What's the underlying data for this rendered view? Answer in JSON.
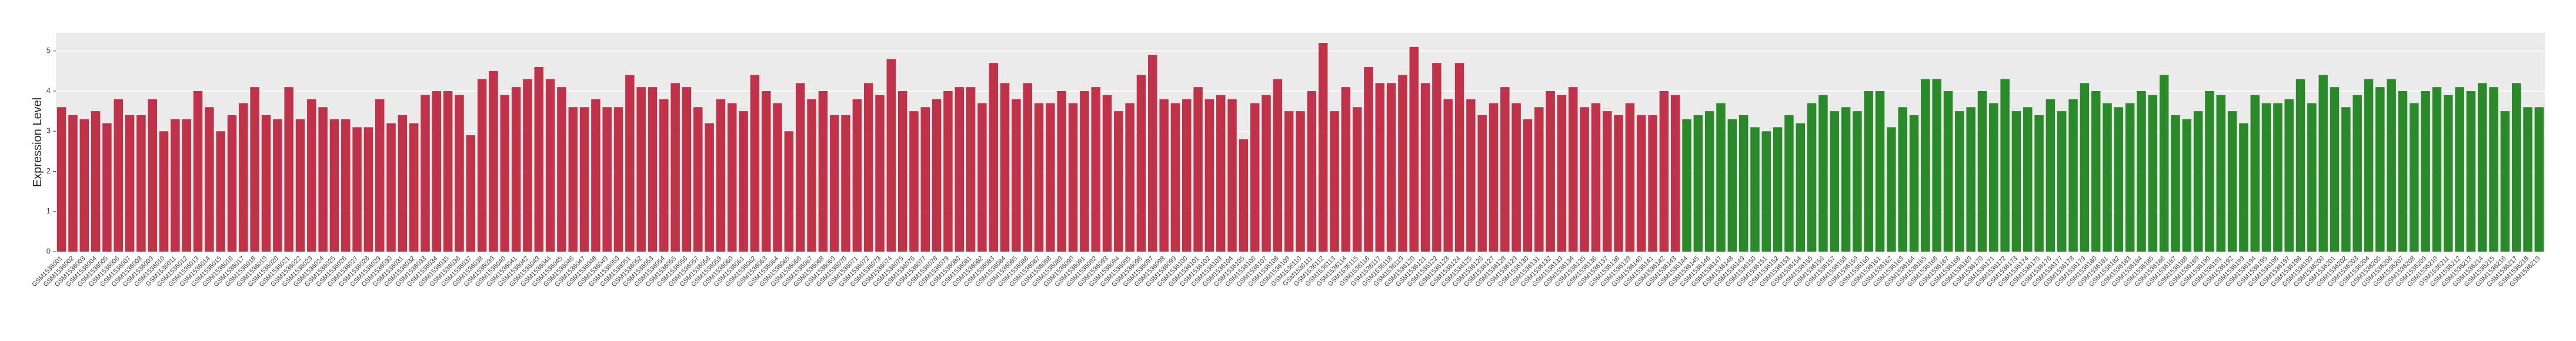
{
  "chart_data": {
    "type": "bar",
    "y_label": "Expression Level",
    "ylim": [
      0,
      5.45
    ],
    "yticks": [
      0,
      1,
      2,
      3,
      4,
      5
    ],
    "grid": true,
    "categories": [
      "GSM1536001",
      "GSM1536002",
      "GSM1536003",
      "GSM1536004",
      "GSM1536005",
      "GSM1536006",
      "GSM1536007",
      "GSM1536008",
      "GSM1536009",
      "GSM1536010",
      "GSM1536011",
      "GSM1536012",
      "GSM1536013",
      "GSM1536014",
      "GSM1536015",
      "GSM1536016",
      "GSM1536017",
      "GSM1536018",
      "GSM1536019",
      "GSM1536020",
      "GSM1536021",
      "GSM1536022",
      "GSM1536023",
      "GSM1536024",
      "GSM1536025",
      "GSM1536026",
      "GSM1536027",
      "GSM1536028",
      "GSM1536029",
      "GSM1536030",
      "GSM1536031",
      "GSM1536032",
      "GSM1536033",
      "GSM1536034",
      "GSM1536035",
      "GSM1536036",
      "GSM1536037",
      "GSM1536038",
      "GSM1536039",
      "GSM1536040",
      "GSM1536041",
      "GSM1536042",
      "GSM1536043",
      "GSM1536044",
      "GSM1536045",
      "GSM1536046",
      "GSM1536047",
      "GSM1536048",
      "GSM1536049",
      "GSM1536050",
      "GSM1536051",
      "GSM1536052",
      "GSM1536053",
      "GSM1536054",
      "GSM1536055",
      "GSM1536056",
      "GSM1536057",
      "GSM1536058",
      "GSM1536059",
      "GSM1536060",
      "GSM1536061",
      "GSM1536062",
      "GSM1536063",
      "GSM1536064",
      "GSM1536065",
      "GSM1536066",
      "GSM1536067",
      "GSM1536068",
      "GSM1536069",
      "GSM1536070",
      "GSM1536071",
      "GSM1536072",
      "GSM1536073",
      "GSM1536074",
      "GSM1536075",
      "GSM1536076",
      "GSM1536077",
      "GSM1536078",
      "GSM1536079",
      "GSM1536080",
      "GSM1536081",
      "GSM1536082",
      "GSM1536083",
      "GSM1536084",
      "GSM1536085",
      "GSM1536086",
      "GSM1536087",
      "GSM1536088",
      "GSM1536089",
      "GSM1536090",
      "GSM1536091",
      "GSM1536092",
      "GSM1536093",
      "GSM1536094",
      "GSM1536095",
      "GSM1536096",
      "GSM1536097",
      "GSM1536098",
      "GSM1536099",
      "GSM1536100",
      "GSM1536101",
      "GSM1536102",
      "GSM1536103",
      "GSM1536104",
      "GSM1536105",
      "GSM1536106",
      "GSM1536107",
      "GSM1536108",
      "GSM1536109",
      "GSM1536110",
      "GSM1536111",
      "GSM1536112",
      "GSM1536113",
      "GSM1536114",
      "GSM1536115",
      "GSM1536116",
      "GSM1536117",
      "GSM1536118",
      "GSM1536119",
      "GSM1536120",
      "GSM1536121",
      "GSM1536122",
      "GSM1536123",
      "GSM1536124",
      "GSM1536125",
      "GSM1536126",
      "GSM1536127",
      "GSM1536128",
      "GSM1536129",
      "GSM1536130",
      "GSM1536131",
      "GSM1536132",
      "GSM1536133",
      "GSM1536134",
      "GSM1536135",
      "GSM1536136",
      "GSM1536137",
      "GSM1536138",
      "GSM1536139",
      "GSM1536140",
      "GSM1536141",
      "GSM1536142",
      "GSM1536143",
      "GSM1536144",
      "GSM1536145",
      "GSM1536146",
      "GSM1536147",
      "GSM1536148",
      "GSM1536149",
      "GSM1536150",
      "GSM1536151",
      "GSM1536152",
      "GSM1536153",
      "GSM1536154",
      "GSM1536155",
      "GSM1536156",
      "GSM1536157",
      "GSM1536158",
      "GSM1536159",
      "GSM1536160",
      "GSM1536161",
      "GSM1536162",
      "GSM1536163",
      "GSM1536164",
      "GSM1536165",
      "GSM1536166",
      "GSM1536167",
      "GSM1536168",
      "GSM1536169",
      "GSM1536170",
      "GSM1536171",
      "GSM1536172",
      "GSM1536173",
      "GSM1536174",
      "GSM1536175",
      "GSM1536176",
      "GSM1536177",
      "GSM1536178",
      "GSM1536179",
      "GSM1536180",
      "GSM1536181",
      "GSM1536182",
      "GSM1536183",
      "GSM1536184",
      "GSM1536185",
      "GSM1536186",
      "GSM1536187",
      "GSM1536188",
      "GSM1536189",
      "GSM1536190",
      "GSM1536191",
      "GSM1536192",
      "GSM1536193",
      "GSM1536194",
      "GSM1536195",
      "GSM1536196",
      "GSM1536197",
      "GSM1536198",
      "GSM1536199",
      "GSM1536200",
      "GSM1536201",
      "GSM1536202",
      "GSM1536203",
      "GSM1536204",
      "GSM1536205",
      "GSM1536206",
      "GSM1536207",
      "GSM1536208",
      "GSM1536209",
      "GSM1536210",
      "GSM1536211",
      "GSM1536212",
      "GSM1536213",
      "GSM1536214",
      "GSM1536215",
      "GSM1536216",
      "GSM1536217",
      "GSM1536218",
      "GSM1536219"
    ],
    "values": [
      3.6,
      3.4,
      3.3,
      3.5,
      3.2,
      3.8,
      3.4,
      3.4,
      3.8,
      3.0,
      3.3,
      3.3,
      4.0,
      3.6,
      3.0,
      3.4,
      3.7,
      4.1,
      3.4,
      3.3,
      4.1,
      3.3,
      3.8,
      3.6,
      3.3,
      3.3,
      3.1,
      3.1,
      3.8,
      3.2,
      3.4,
      3.2,
      3.9,
      4.0,
      4.0,
      3.9,
      2.9,
      4.3,
      4.5,
      3.9,
      4.1,
      4.3,
      4.6,
      4.3,
      4.1,
      3.6,
      3.6,
      3.8,
      3.6,
      3.6,
      4.4,
      4.1,
      4.1,
      3.8,
      4.2,
      4.1,
      3.6,
      3.2,
      3.8,
      3.7,
      3.5,
      4.4,
      4.0,
      3.7,
      3.0,
      4.2,
      3.8,
      4.0,
      3.4,
      3.4,
      3.8,
      4.2,
      3.9,
      4.8,
      4.0,
      3.5,
      3.6,
      3.8,
      4.0,
      4.1,
      4.1,
      3.7,
      4.7,
      4.2,
      3.8,
      4.2,
      3.7,
      3.7,
      4.0,
      3.7,
      4.0,
      4.1,
      3.9,
      3.5,
      3.7,
      4.4,
      4.9,
      3.8,
      3.7,
      3.8,
      4.1,
      3.8,
      3.9,
      3.8,
      2.8,
      3.7,
      3.9,
      4.3,
      3.5,
      3.5,
      4.0,
      5.2,
      3.5,
      4.1,
      3.6,
      4.6,
      4.2,
      4.2,
      4.4,
      5.1,
      4.2,
      4.7,
      3.8,
      4.7,
      3.8,
      3.4,
      3.7,
      4.1,
      3.7,
      3.3,
      3.6,
      4.0,
      3.9,
      4.1,
      3.6,
      3.7,
      3.5,
      3.4,
      3.7,
      3.4,
      3.4,
      4.0,
      3.9,
      3.3,
      3.4,
      3.5,
      3.7,
      3.3,
      3.4,
      3.1,
      3.0,
      3.1,
      3.4,
      3.2,
      3.7,
      3.9,
      3.5,
      3.6,
      3.5,
      4.0,
      4.0,
      3.1,
      3.6,
      3.4,
      4.3,
      4.3,
      4.0,
      3.5,
      3.6,
      4.0,
      3.7,
      4.3,
      3.5,
      3.6,
      3.4,
      3.8,
      3.5,
      3.8,
      4.2,
      4.0,
      3.7,
      3.6,
      3.7,
      4.0,
      3.9,
      4.4,
      3.4,
      3.3,
      3.5,
      4.0,
      3.9,
      3.5,
      3.2,
      3.9,
      3.7,
      3.7,
      3.8,
      4.3,
      3.7,
      4.4,
      4.1,
      3.6,
      3.9,
      4.3,
      4.1,
      4.3,
      4.0,
      3.7,
      4.0,
      4.1,
      3.9,
      4.1,
      4.0,
      4.2,
      4.1,
      3.5,
      4.2,
      3.6,
      3.6
    ],
    "colors": [
      "#c0314a",
      "#c0314a",
      "#c0314a",
      "#c0314a",
      "#c0314a",
      "#c0314a",
      "#c0314a",
      "#c0314a",
      "#c0314a",
      "#c0314a",
      "#c0314a",
      "#c0314a",
      "#c0314a",
      "#c0314a",
      "#c0314a",
      "#c0314a",
      "#c0314a",
      "#c0314a",
      "#c0314a",
      "#c0314a",
      "#c0314a",
      "#c0314a",
      "#c0314a",
      "#c0314a",
      "#c0314a",
      "#c0314a",
      "#c0314a",
      "#c0314a",
      "#c0314a",
      "#c0314a",
      "#c0314a",
      "#c0314a",
      "#c0314a",
      "#c0314a",
      "#c0314a",
      "#c0314a",
      "#c0314a",
      "#c0314a",
      "#c0314a",
      "#c0314a",
      "#c0314a",
      "#c0314a",
      "#c0314a",
      "#c0314a",
      "#c0314a",
      "#c0314a",
      "#c0314a",
      "#c0314a",
      "#c0314a",
      "#c0314a",
      "#c0314a",
      "#c0314a",
      "#c0314a",
      "#c0314a",
      "#c0314a",
      "#c0314a",
      "#c0314a",
      "#c0314a",
      "#c0314a",
      "#c0314a",
      "#c0314a",
      "#c0314a",
      "#c0314a",
      "#c0314a",
      "#c0314a",
      "#c0314a",
      "#c0314a",
      "#c0314a",
      "#c0314a",
      "#c0314a",
      "#c0314a",
      "#c0314a",
      "#c0314a",
      "#c0314a",
      "#c0314a",
      "#c0314a",
      "#c0314a",
      "#c0314a",
      "#c0314a",
      "#c0314a",
      "#c0314a",
      "#c0314a",
      "#c0314a",
      "#c0314a",
      "#c0314a",
      "#c0314a",
      "#c0314a",
      "#c0314a",
      "#c0314a",
      "#c0314a",
      "#c0314a",
      "#c0314a",
      "#c0314a",
      "#c0314a",
      "#c0314a",
      "#c0314a",
      "#c0314a",
      "#c0314a",
      "#c0314a",
      "#c0314a",
      "#c0314a",
      "#c0314a",
      "#c0314a",
      "#c0314a",
      "#c0314a",
      "#c0314a",
      "#c0314a",
      "#c0314a",
      "#c0314a",
      "#c0314a",
      "#c0314a",
      "#c0314a",
      "#c0314a",
      "#c0314a",
      "#c0314a",
      "#c0314a",
      "#c0314a",
      "#c0314a",
      "#c0314a",
      "#c0314a",
      "#c0314a",
      "#c0314a",
      "#c0314a",
      "#c0314a",
      "#c0314a",
      "#c0314a",
      "#c0314a",
      "#c0314a",
      "#c0314a",
      "#c0314a",
      "#c0314a",
      "#c0314a",
      "#c0314a",
      "#c0314a",
      "#c0314a",
      "#c0314a",
      "#c0314a",
      "#c0314a",
      "#c0314a",
      "#c0314a",
      "#c0314a",
      "#c0314a",
      "#c0314a",
      "#2a8a2a",
      "#2a8a2a",
      "#2a8a2a",
      "#2a8a2a",
      "#2a8a2a",
      "#2a8a2a",
      "#2a8a2a",
      "#2a8a2a",
      "#2a8a2a",
      "#2a8a2a",
      "#2a8a2a",
      "#2a8a2a",
      "#2a8a2a",
      "#2a8a2a",
      "#2a8a2a",
      "#2a8a2a",
      "#2a8a2a",
      "#2a8a2a",
      "#2a8a2a",
      "#2a8a2a",
      "#2a8a2a",
      "#2a8a2a",
      "#2a8a2a",
      "#2a8a2a",
      "#2a8a2a",
      "#2a8a2a",
      "#2a8a2a",
      "#2a8a2a",
      "#2a8a2a",
      "#2a8a2a",
      "#2a8a2a",
      "#2a8a2a",
      "#2a8a2a",
      "#2a8a2a",
      "#2a8a2a",
      "#2a8a2a",
      "#2a8a2a",
      "#2a8a2a",
      "#2a8a2a",
      "#2a8a2a",
      "#2a8a2a",
      "#2a8a2a",
      "#2a8a2a",
      "#2a8a2a",
      "#2a8a2a",
      "#2a8a2a",
      "#2a8a2a",
      "#2a8a2a",
      "#2a8a2a",
      "#2a8a2a",
      "#2a8a2a",
      "#2a8a2a",
      "#2a8a2a",
      "#2a8a2a",
      "#2a8a2a",
      "#2a8a2a",
      "#2a8a2a",
      "#2a8a2a",
      "#2a8a2a",
      "#2a8a2a",
      "#2a8a2a",
      "#2a8a2a",
      "#2a8a2a",
      "#2a8a2a",
      "#2a8a2a",
      "#2a8a2a",
      "#2a8a2a",
      "#2a8a2a",
      "#2a8a2a",
      "#2a8a2a",
      "#2a8a2a",
      "#2a8a2a",
      "#2a8a2a",
      "#2a8a2a",
      "#2a8a2a",
      "#2a8a2a"
    ]
  }
}
